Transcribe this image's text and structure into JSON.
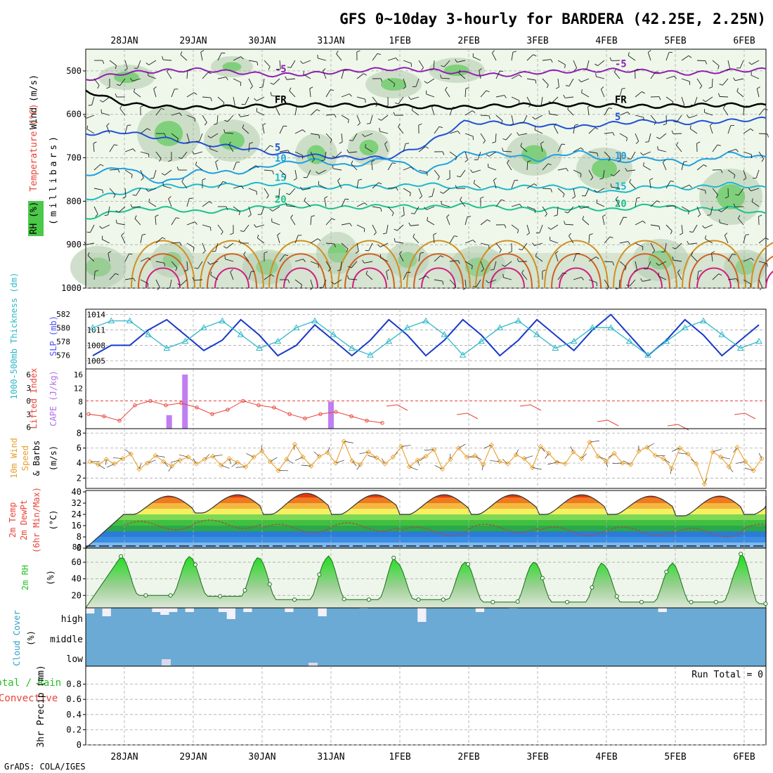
{
  "header": {
    "title": "GFS 0~10day 3-hourly for BARDERA (42.25E, 2.25N)",
    "credit": "GrADS: COLA/IGES"
  },
  "x_axis": {
    "labels": [
      "28JAN",
      "29JAN",
      "30JAN",
      "31JAN",
      "1FEB",
      "2FEB",
      "3FEB",
      "4FEB",
      "5FEB",
      "6FEB"
    ],
    "start_label": "28JAN",
    "day_spacing_note": "one tick per day"
  },
  "panel_labels": {
    "upper_wind": "Wind (m/s)",
    "upper_temp": "Temperature (°C)",
    "upper_rh": "RH (%)",
    "upper_pressure": "(millibars)",
    "thickness": "1000-500mb Thickness (dm)",
    "slp": "SLP (mb)",
    "lifted_index": "Lifted Index",
    "cape": "CAPE (J/kg)",
    "wind10_a": "10m Wind",
    "wind10_b": "Speed",
    "wind10_c": "& Barbs",
    "wind10_unit": "(m/s)",
    "temp_a": "2m Temp",
    "temp_b": "2m DewPt",
    "temp_c": "(6hr Min/Max)",
    "temp_unit": "(°C)",
    "rh_a": "2m RH",
    "rh_unit": "(%)",
    "cloud_a": "Cloud Cover",
    "cloud_unit": "(%)",
    "cloud_levels": [
      "high",
      "middle",
      "low"
    ],
    "precip_a": "Total / Rain",
    "precip_b": "Convective",
    "precip_unit": "3hr Precip (mm)",
    "run_total": "Run Total = 0"
  },
  "colors": {
    "temp_label": "#e8443a",
    "wind_label": "#e8a030",
    "rh_label": "#22c022",
    "slp_label": "#5050ff",
    "thick_label": "#30b8c8",
    "cape_label": "#b070e8",
    "cloud_fill": "#6aaad4",
    "cloud_label": "#30a0c8",
    "isotherm_minus5": "#9020b0",
    "isotherm_5": "#2050d8",
    "isotherm_10": "#20a0e0",
    "isotherm_15": "#20b8c8",
    "isotherm_20": "#20c090",
    "isotherm_25": "#d09020",
    "isotherm_30": "#d06020",
    "isotherm_35": "#d02080"
  },
  "chart_data": [
    {
      "type": "contour",
      "name": "upper-air cross section",
      "ylabel": "(millibars)",
      "yticks": [
        500,
        600,
        700,
        800,
        900,
        1000
      ],
      "ylim": [
        1000,
        450
      ],
      "isotherm_labels": [
        "-5",
        "5",
        "10",
        "15",
        "20",
        "FR"
      ],
      "x_start_day": 0.0,
      "series": [
        {
          "name": "-5",
          "values": [
            520,
            505,
            500,
            497,
            503,
            510,
            506,
            500,
            495,
            498,
            505,
            510,
            503,
            500,
            498,
            501,
            506,
            500,
            497
          ]
        },
        {
          "name": "FR",
          "values": [
            545,
            575,
            583,
            585,
            582,
            580,
            578,
            579,
            580,
            583,
            584,
            580,
            577,
            578,
            580,
            582,
            579,
            578,
            580
          ]
        },
        {
          "name": "5",
          "values": [
            645,
            640,
            655,
            668,
            675,
            690,
            695,
            700,
            700,
            670,
            618,
            620,
            625,
            630,
            620,
            615,
            620,
            615,
            610
          ]
        },
        {
          "name": "10",
          "values": [
            740,
            720,
            760,
            730,
            735,
            715,
            705,
            720,
            700,
            735,
            690,
            690,
            705,
            685,
            710,
            700,
            715,
            690,
            700
          ]
        },
        {
          "name": "15",
          "values": [
            795,
            780,
            765,
            765,
            762,
            760,
            770,
            765,
            768,
            760,
            770,
            770,
            765,
            770,
            780,
            765,
            770,
            760,
            770
          ]
        },
        {
          "name": "20",
          "values": [
            840,
            820,
            815,
            825,
            820,
            810,
            812,
            815,
            810,
            815,
            808,
            815,
            820,
            815,
            820,
            808,
            820,
            815,
            830
          ]
        }
      ],
      "surface_warm_cycles": 10
    },
    {
      "type": "line",
      "name": "SLP and thickness",
      "y_left_label": "1000-500mb Thickness (dm)",
      "y_left_ticks": [
        576,
        578,
        580,
        582
      ],
      "y_right_label": "SLP (mb)",
      "y_right_ticks": [
        1005,
        1008,
        1011,
        1014
      ],
      "series": [
        {
          "name": "SLP (mb)",
          "values": [
            1006,
            1008,
            1008,
            1011,
            1013,
            1010,
            1007,
            1009,
            1013,
            1010,
            1006,
            1008,
            1012,
            1009,
            1006,
            1009,
            1013,
            1010,
            1006,
            1009,
            1013,
            1010,
            1006,
            1009,
            1013,
            1010,
            1007,
            1011,
            1014,
            1010,
            1006,
            1009,
            1013,
            1010,
            1006,
            1009,
            1012
          ]
        },
        {
          "name": "1000-500mb Thickness (dm)",
          "values": [
            580,
            581,
            581,
            579,
            577,
            578,
            580,
            581,
            579,
            577,
            578,
            580,
            581,
            579,
            577,
            576,
            578,
            580,
            581,
            579,
            576,
            578,
            580,
            581,
            579,
            577,
            578,
            580,
            580,
            578,
            576,
            578,
            580,
            581,
            579,
            577,
            578
          ]
        }
      ]
    },
    {
      "type": "bar",
      "name": "CAPE and Lifted Index",
      "y_left_label": "Lifted Index",
      "y_left_ticks": [
        -6,
        -3,
        0,
        3,
        6
      ],
      "y_right_label": "CAPE (J/kg)",
      "y_right_ticks": [
        4,
        8,
        12,
        16
      ],
      "cape_bars": [
        {
          "day": 0.65,
          "value": 4
        },
        {
          "day": 0.88,
          "value": 16
        },
        {
          "day": 3.0,
          "value": 8
        }
      ],
      "lifted_index_values": [
        3,
        3.5,
        4.5,
        1,
        0,
        1,
        0.5,
        1.5,
        3,
        2,
        0,
        1,
        1.5,
        3,
        4,
        3,
        2.5,
        3.5,
        4.5,
        5
      ]
    },
    {
      "type": "line",
      "name": "10m Wind Speed",
      "ylabel": "(m/s)",
      "yticks": [
        2,
        4,
        6,
        8
      ],
      "ylim": [
        1,
        8
      ],
      "values": [
        4.2,
        3.8,
        4.5,
        3.9,
        4.6,
        5.2,
        3.2,
        4.0,
        5.0,
        4.2,
        3.6,
        4.4,
        4.8,
        3.9,
        4.5,
        4.9,
        3.7,
        4.6,
        4.1,
        3.5,
        4.8,
        5.6,
        4.2,
        3.0,
        4.5,
        6.5,
        4.8,
        3.6,
        4.9,
        5.4,
        4.0,
        6.9,
        4.3,
        3.8,
        5.5,
        4.7,
        3.9,
        4.8,
        6.2,
        3.5,
        4.4,
        4.9,
        5.8,
        3.2,
        4.5,
        6.0,
        4.8,
        5.0,
        3.8,
        6.4,
        4.2,
        3.9,
        5.1,
        4.6,
        3.4,
        6.2,
        5.3,
        4.1,
        3.9,
        5.5,
        4.6,
        6.8,
        4.9,
        4.2,
        5.3,
        4.0,
        3.8,
        5.6,
        6.1,
        5.0,
        4.6,
        3.3,
        6.0,
        5.2,
        3.9,
        1.2,
        5.5,
        4.8,
        3.5,
        6.1,
        4.2,
        3.0,
        4.6
      ]
    },
    {
      "type": "area",
      "name": "2m Temp and DewPt",
      "ylabel": "(°C)",
      "yticks": [
        0,
        8,
        16,
        24,
        32,
        40
      ],
      "ylim": [
        0,
        40
      ],
      "temp_max": [
        37,
        38,
        39,
        38,
        38,
        38,
        38,
        37,
        37,
        37
      ],
      "temp_min": [
        24,
        25,
        24,
        24,
        24,
        24,
        24,
        24,
        23,
        24
      ],
      "dewpt_mean": [
        16,
        17,
        14,
        15,
        12,
        14,
        12,
        12,
        11,
        14
      ]
    },
    {
      "type": "line",
      "name": "2m RH",
      "ylabel": "(%)",
      "yticks": [
        20,
        40,
        60
      ],
      "ylim": [
        5,
        75
      ],
      "max_values": [
        67,
        66,
        65,
        68,
        60,
        60,
        60,
        57,
        59,
        70
      ],
      "min_values": [
        20,
        19,
        15,
        15,
        15,
        12,
        12,
        12,
        12,
        10
      ]
    },
    {
      "type": "bar",
      "name": "Cloud Cover",
      "ylabel": "(%)",
      "levels": [
        "high",
        "middle",
        "low"
      ],
      "high_values": [
        80,
        95,
        60,
        100,
        100,
        100,
        100,
        100,
        90,
        70,
        90,
        100,
        90,
        100,
        100,
        100,
        90,
        40,
        100,
        90,
        100,
        100,
        100,
        100,
        90,
        100,
        100,
        100,
        60,
        100,
        100,
        100,
        100,
        95,
        100,
        100,
        100,
        100,
        100,
        100,
        20,
        100,
        100,
        100,
        100,
        100,
        100,
        90,
        100,
        100,
        100,
        95,
        100,
        100,
        100,
        100,
        100,
        100,
        100,
        100,
        100,
        100,
        100,
        100,
        100,
        100,
        100,
        100,
        100,
        90,
        100,
        100,
        100,
        100,
        100,
        100,
        100,
        100,
        100,
        100,
        100,
        100
      ]
    },
    {
      "type": "line",
      "name": "3hr Precip",
      "ylabel": "3hr Precip (mm)",
      "yticks": [
        0,
        0.2,
        0.4,
        0.6,
        0.8
      ],
      "ylim": [
        0,
        1
      ],
      "values": []
    }
  ]
}
